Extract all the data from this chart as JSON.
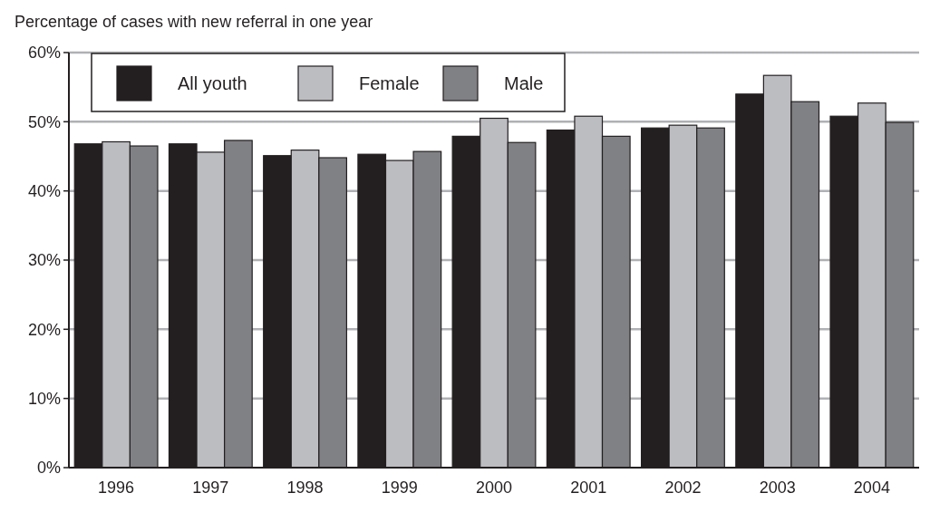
{
  "chart_data": {
    "type": "bar",
    "title": "Percentage of cases with new referral in one year",
    "categories": [
      "1996",
      "1997",
      "1998",
      "1999",
      "2000",
      "2001",
      "2002",
      "2003",
      "2004"
    ],
    "series": [
      {
        "name": "All youth",
        "color": "#231f20",
        "values": [
          46.8,
          46.8,
          45.1,
          45.3,
          47.9,
          48.8,
          49.1,
          54.0,
          50.8
        ]
      },
      {
        "name": "Female",
        "color": "#bcbdc1",
        "values": [
          47.1,
          45.6,
          45.9,
          44.4,
          50.5,
          50.8,
          49.5,
          56.7,
          52.7
        ]
      },
      {
        "name": "Male",
        "color": "#808184",
        "values": [
          46.5,
          47.3,
          44.8,
          45.7,
          47.0,
          47.9,
          49.1,
          52.9,
          49.9
        ]
      }
    ],
    "ylim": [
      0,
      60
    ],
    "yticks": [
      {
        "value": 0,
        "label": "0%"
      },
      {
        "value": 10,
        "label": "10%"
      },
      {
        "value": 20,
        "label": "20%"
      },
      {
        "value": 30,
        "label": "30%"
      },
      {
        "value": 40,
        "label": "40%"
      },
      {
        "value": 50,
        "label": "50%"
      },
      {
        "value": 60,
        "label": "60%"
      }
    ],
    "grid": "y",
    "legend": "top left"
  }
}
